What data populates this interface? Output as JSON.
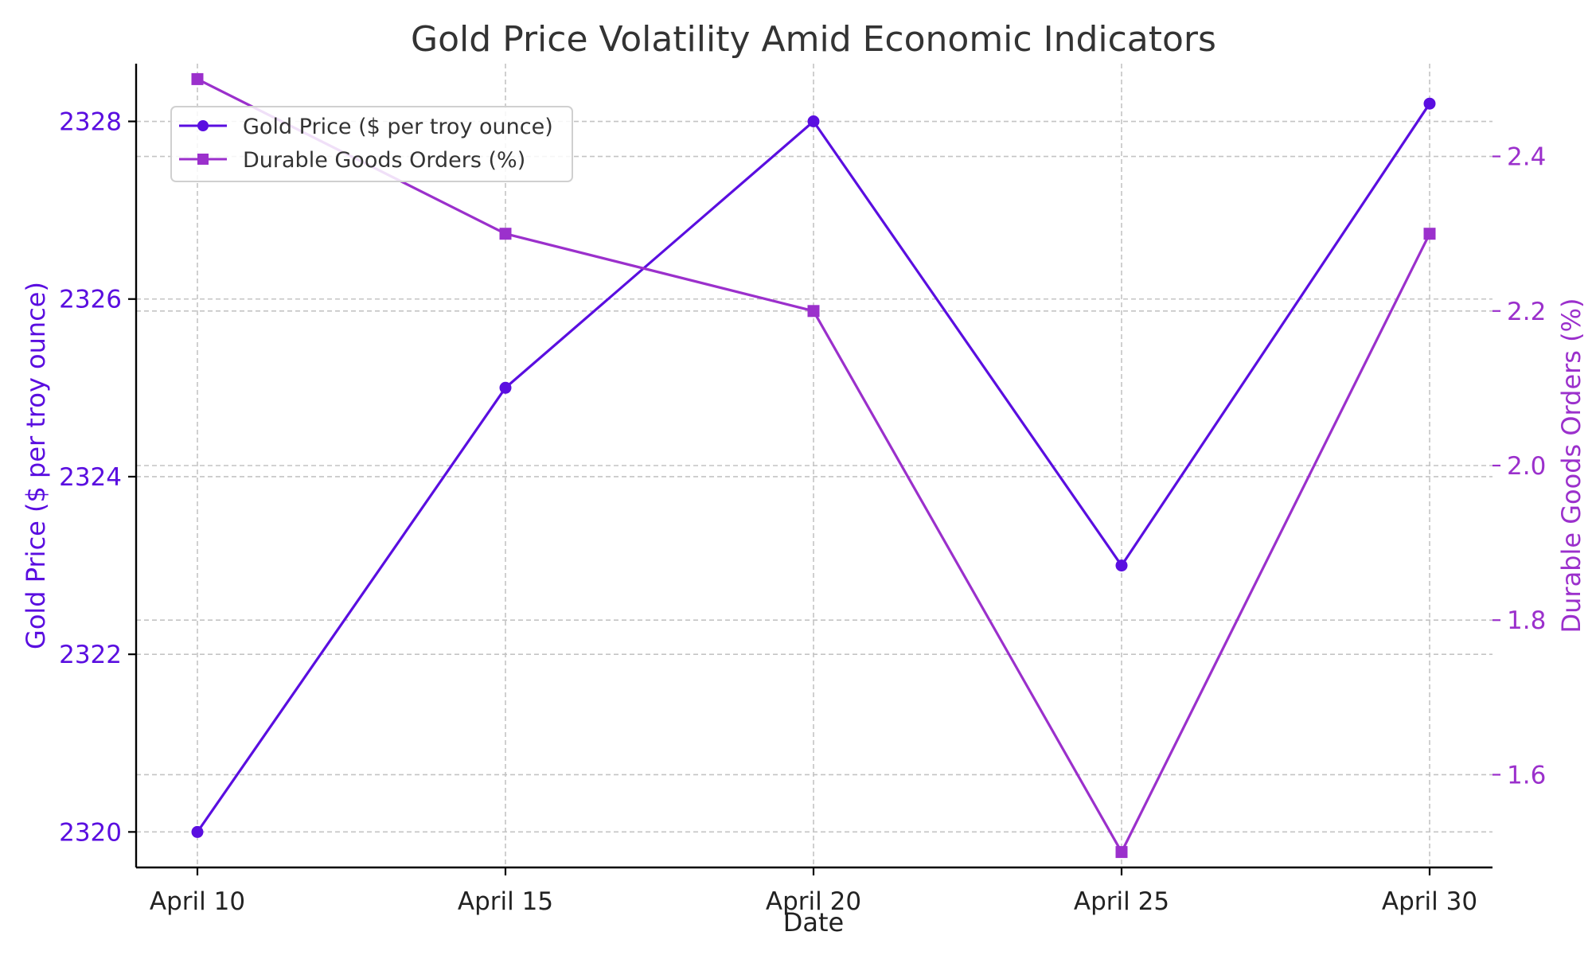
{
  "chart_data": {
    "type": "line",
    "title": "Gold Price Volatility Amid Economic Indicators",
    "xlabel": "Date",
    "categories": [
      "April 10",
      "April 15",
      "April 20",
      "April 25",
      "April 30"
    ],
    "y_left": {
      "label": "Gold Price ($ per troy ounce)",
      "range": [
        2319.6,
        2328.65
      ],
      "ticks": [
        "2320",
        "2322",
        "2324",
        "2326",
        "2328"
      ],
      "color": "#5a0ee0"
    },
    "y_right": {
      "label": "Durable Goods Orders (%)",
      "range": [
        1.48,
        2.52
      ],
      "ticks": [
        "1.6",
        "1.8",
        "2.0",
        "2.2",
        "2.4"
      ],
      "color": "#9b30cc"
    },
    "series": [
      {
        "name": "Gold Price ($ per troy ounce)",
        "axis": "left",
        "values": [
          2320,
          2325,
          2328,
          2323,
          2328.2
        ],
        "color": "#5a0ee0",
        "marker": "circle"
      },
      {
        "name": "Durable Goods Orders (%)",
        "axis": "right",
        "values": [
          2.5,
          2.3,
          2.2,
          1.5,
          2.3
        ],
        "color": "#9b30cc",
        "marker": "square"
      }
    ],
    "grid": true,
    "legend": "top-left"
  }
}
